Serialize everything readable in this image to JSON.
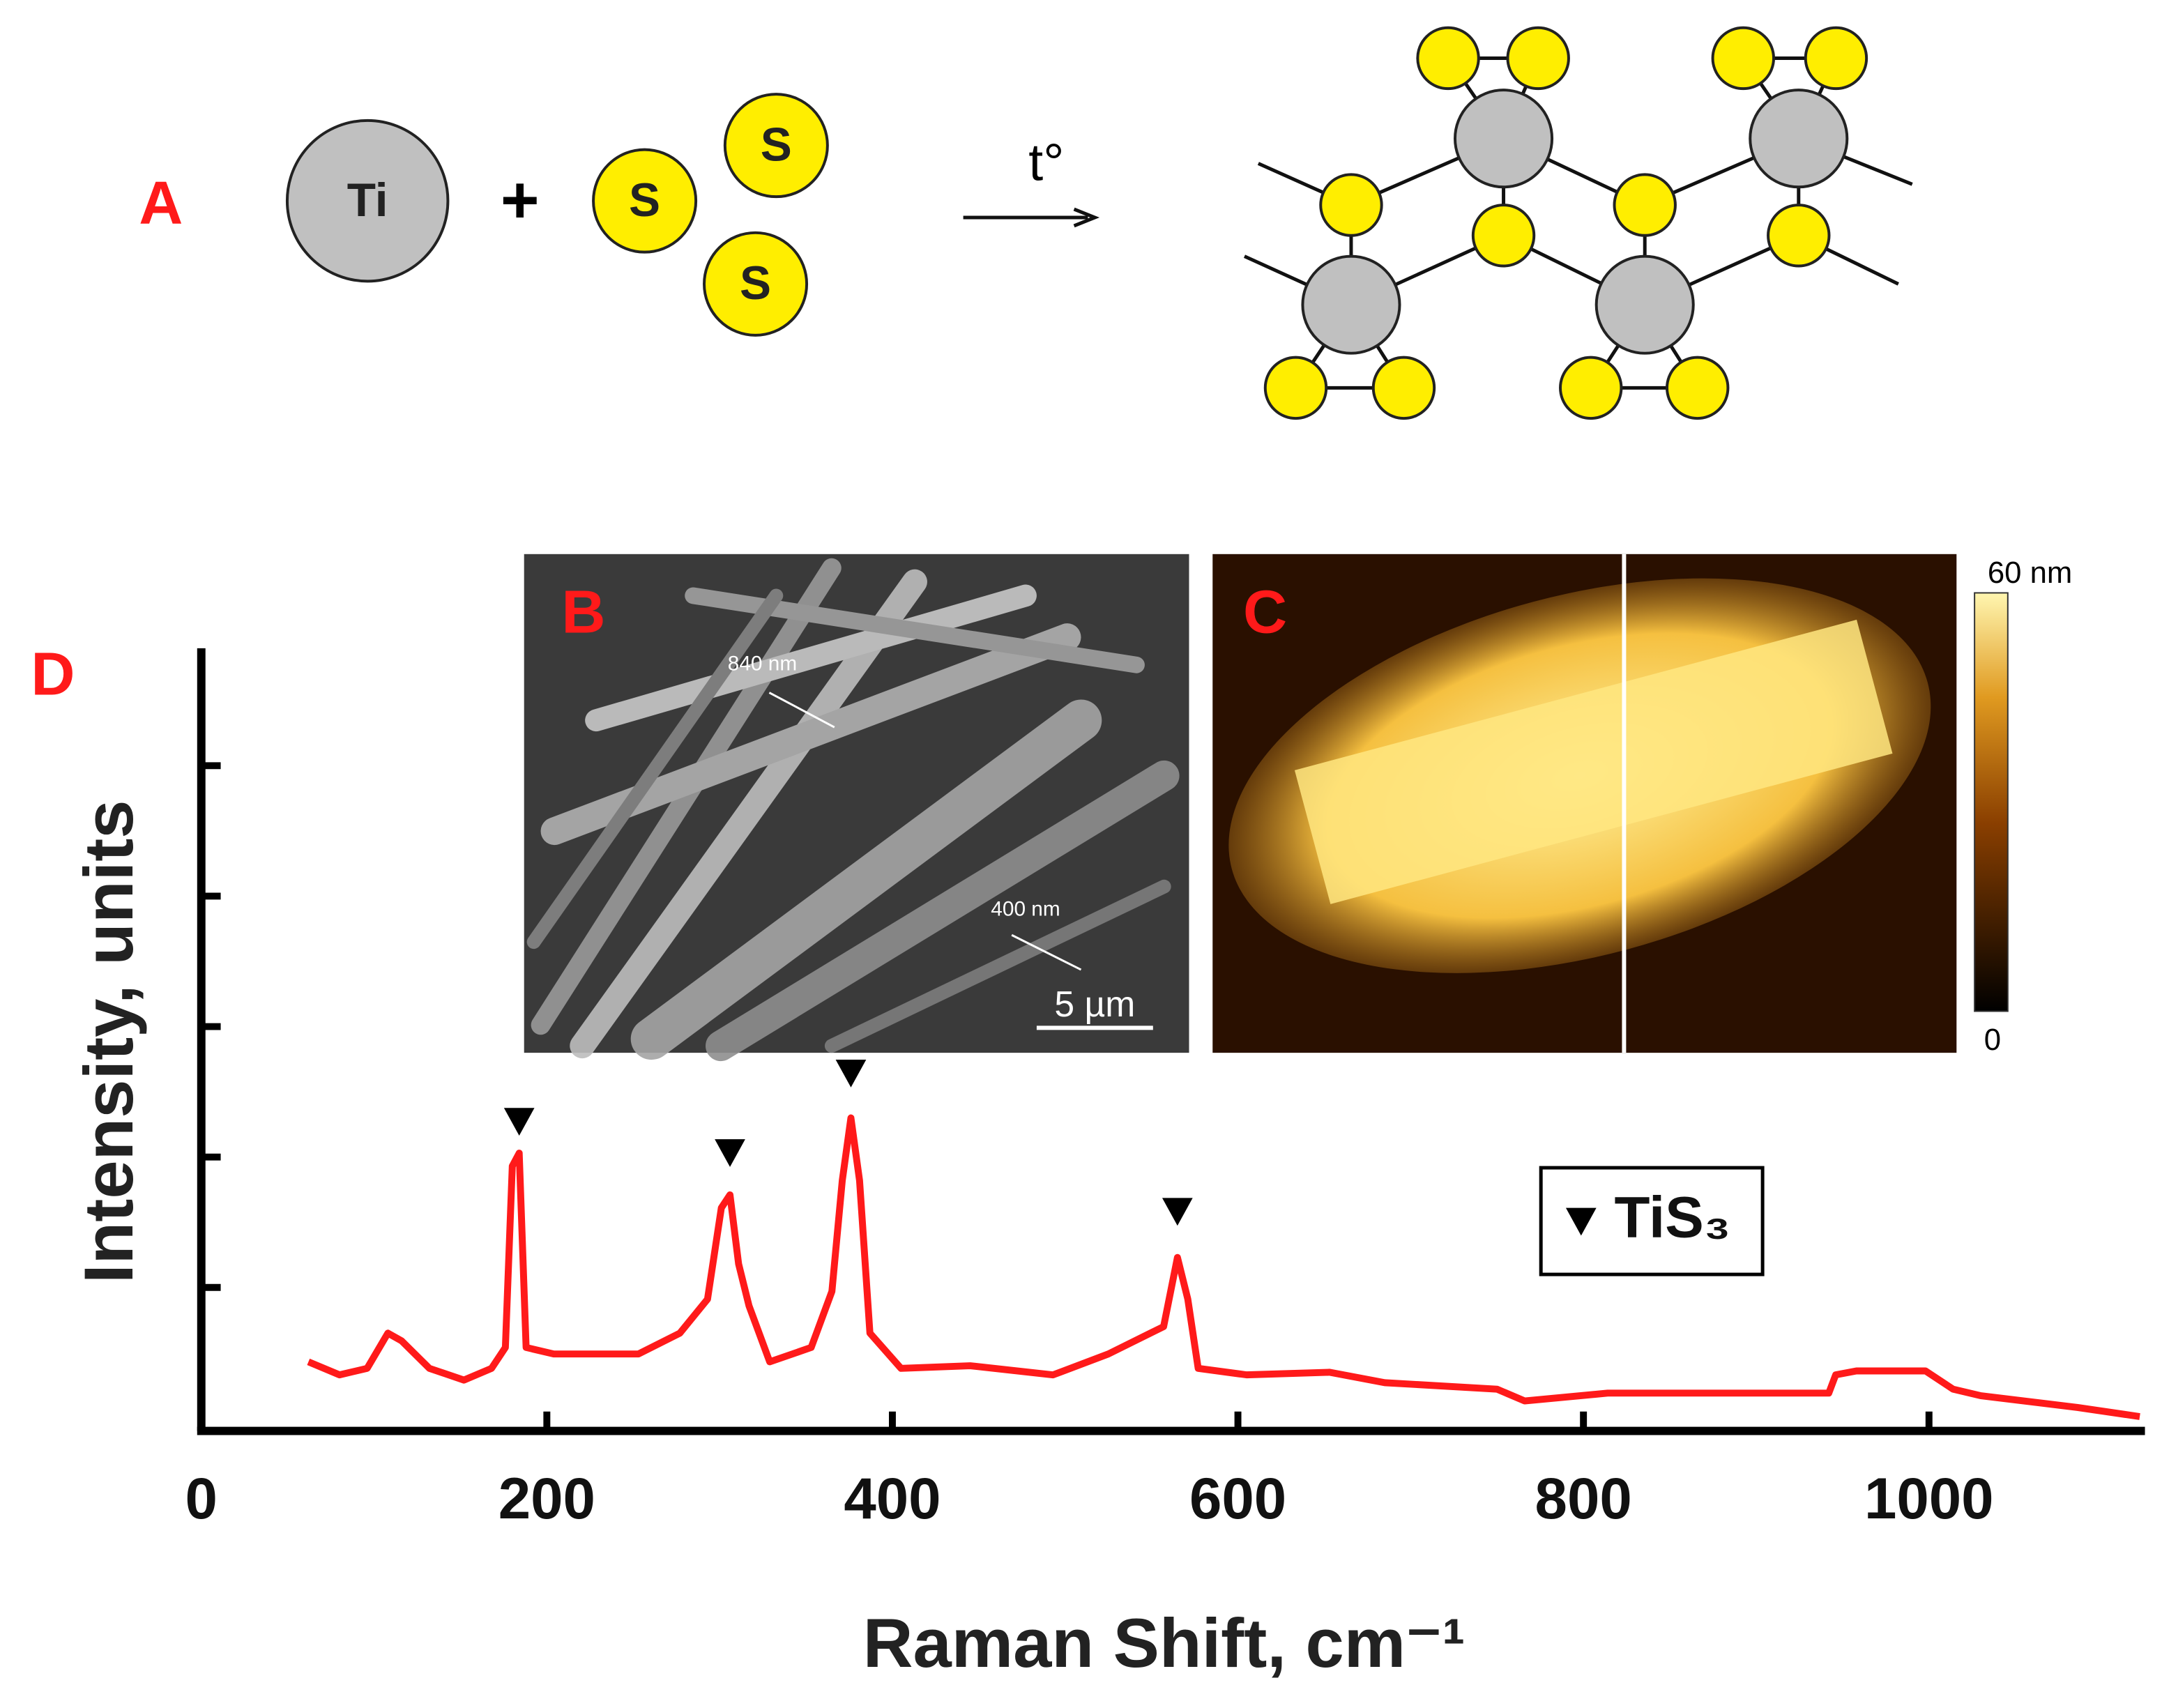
{
  "panel_labels": {
    "a": "A",
    "b": "B",
    "c": "C",
    "d": "D"
  },
  "scheme": {
    "metal": "Ti",
    "sulfur": "S",
    "plus": "+",
    "condition": "t°"
  },
  "sem": {
    "width_annotations": [
      "840 nm",
      "400 nm"
    ],
    "scale_bar": "5 µm"
  },
  "afm": {
    "colorbar_max": "60 nm",
    "colorbar_min": "0"
  },
  "chart_data": {
    "type": "line",
    "x_label": "Raman Shift, cm⁻¹",
    "y_label": "Intensity, units",
    "x": [
      62,
      80,
      96,
      108,
      116,
      132,
      152,
      168,
      176,
      180,
      184,
      188,
      204,
      253,
      277,
      293,
      301,
      306,
      311,
      317,
      329,
      353,
      365,
      371,
      376,
      381,
      387,
      405,
      445,
      493,
      525,
      557,
      565,
      571,
      577,
      605,
      653,
      685,
      750,
      766,
      814,
      942,
      946,
      958,
      998,
      1014,
      1030,
      1086,
      1122
    ],
    "series": [
      {
        "color": "#ff1a1a",
        "values": [
          0.53,
          0.43,
          0.48,
          0.75,
          0.69,
          0.48,
          0.39,
          0.48,
          0.64,
          2.03,
          2.13,
          0.64,
          0.59,
          0.59,
          0.75,
          1.01,
          1.71,
          1.81,
          1.28,
          0.96,
          0.53,
          0.64,
          1.07,
          1.92,
          2.4,
          1.92,
          0.75,
          0.48,
          0.5,
          0.43,
          0.59,
          0.8,
          1.33,
          1.01,
          0.48,
          0.43,
          0.45,
          0.37,
          0.32,
          0.23,
          0.29,
          0.29,
          0.43,
          0.46,
          0.46,
          0.32,
          0.27,
          0.18,
          0.11
        ]
      }
    ],
    "peak_markers": {
      "x": [
        184,
        306,
        376,
        565
      ],
      "y": [
        2.37,
        2.13,
        2.74,
        1.68
      ],
      "color": "#000000"
    },
    "legend": {
      "label": "TiS₃"
    },
    "xlim": [
      0,
      1125
    ],
    "xticks": [
      0,
      200,
      400,
      600,
      800,
      1000
    ],
    "ylim": [
      0,
      6
    ],
    "yticks": [
      1.1,
      2.1,
      3.1,
      4.1,
      5.1
    ]
  }
}
